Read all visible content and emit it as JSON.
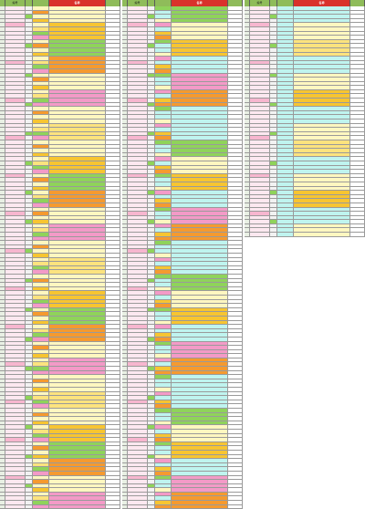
{
  "panels": [
    {
      "id": "left",
      "title": "",
      "cols": [
        "",
        "编号",
        "",
        "",
        "名称",
        ""
      ],
      "rows": 120,
      "palette": [
        "#fff7c0",
        "#f7c531",
        "#8fd35a",
        "#f59a2f",
        "#fff7c0",
        "#f39ac7",
        "#fff7c0",
        "#fce37e"
      ]
    },
    {
      "id": "middle",
      "title": "",
      "cols": [
        "",
        "编号",
        "",
        "",
        "名称",
        ""
      ],
      "rows": 120,
      "palette": [
        "#bff4ef",
        "#8fd35a",
        "#fff7c0",
        "#f7c531",
        "#bff4ef",
        "#f39ac7",
        "#f59a2f",
        "#bff4ef"
      ]
    },
    {
      "id": "right",
      "title": "",
      "cols": [
        "",
        "编号",
        "",
        "",
        "名称",
        ""
      ],
      "rows": 55,
      "palette": [
        "#fff7c0",
        "#f7c531",
        "#bff4ef",
        "#fff7c0",
        "#fce37e",
        "#bff4ef"
      ]
    }
  ],
  "colors": {
    "title_red": "#d9322b",
    "header_green": "#8fbc5a",
    "code_pink": "#fde8f0"
  }
}
